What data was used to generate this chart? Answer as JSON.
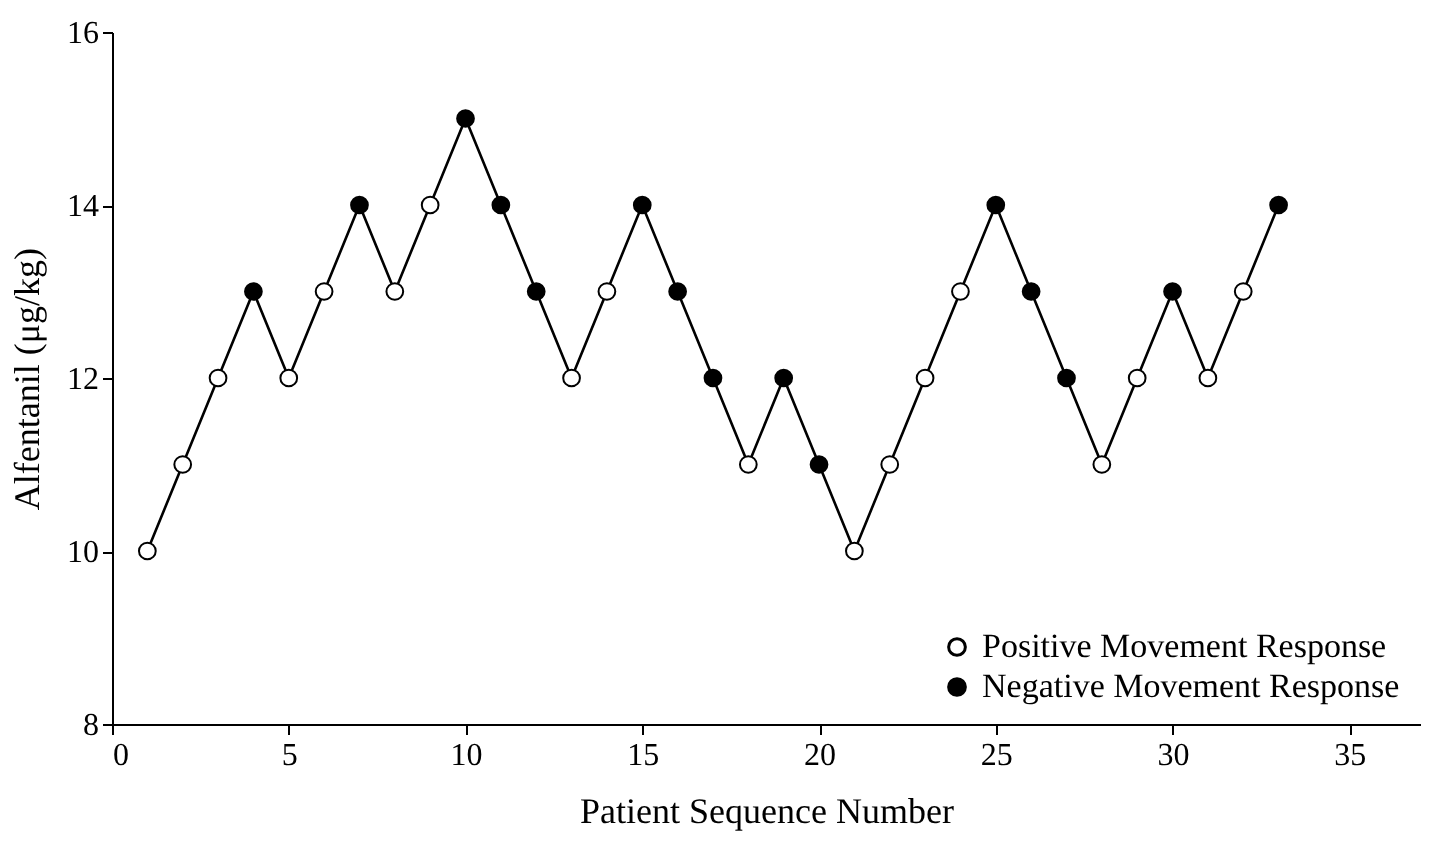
{
  "chart_data": {
    "type": "scatter",
    "xlabel": "Patient Sequence Number",
    "ylabel": "Alfentanil (μg/kg)",
    "x": [
      1,
      2,
      3,
      4,
      5,
      6,
      7,
      8,
      9,
      10,
      11,
      12,
      13,
      14,
      15,
      16,
      17,
      18,
      19,
      20,
      21,
      22,
      23,
      24,
      25,
      26,
      27,
      28,
      29,
      30,
      31,
      32,
      33
    ],
    "series": [
      {
        "type": "line",
        "color": "#000000",
        "marker": "none",
        "line_style": "solid",
        "values": [
          10,
          11,
          12,
          13,
          12,
          13,
          14,
          13,
          14,
          15,
          14,
          13,
          12,
          13,
          14,
          13,
          12,
          11,
          12,
          11,
          10,
          11,
          12,
          13,
          14,
          13,
          12,
          11,
          12,
          13,
          12,
          13,
          14
        ]
      },
      {
        "name": "Positive Movement Response",
        "color": "#ffffff",
        "marker": "circle",
        "values": [
          10,
          11,
          12,
          null,
          12,
          13,
          null,
          13,
          14,
          null,
          null,
          null,
          12,
          13,
          null,
          null,
          null,
          11,
          null,
          null,
          10,
          11,
          12,
          13,
          null,
          null,
          null,
          11,
          12,
          null,
          12,
          13,
          null
        ]
      },
      {
        "name": "Negative Movement Response",
        "color": "#000000",
        "marker": "circle",
        "values": [
          null,
          null,
          null,
          13,
          null,
          null,
          14,
          null,
          null,
          15,
          14,
          13,
          null,
          null,
          14,
          13,
          12,
          null,
          12,
          11,
          null,
          null,
          null,
          null,
          14,
          13,
          12,
          null,
          null,
          13,
          null,
          null,
          14
        ]
      }
    ],
    "xlim": [
      0,
      37
    ],
    "xticks": [
      0,
      5,
      10,
      15,
      20,
      25,
      30,
      35
    ],
    "ylim": [
      8,
      16
    ],
    "yticks": [
      8,
      10,
      12,
      14,
      16
    ],
    "grid": false,
    "legend": "bottom right"
  }
}
